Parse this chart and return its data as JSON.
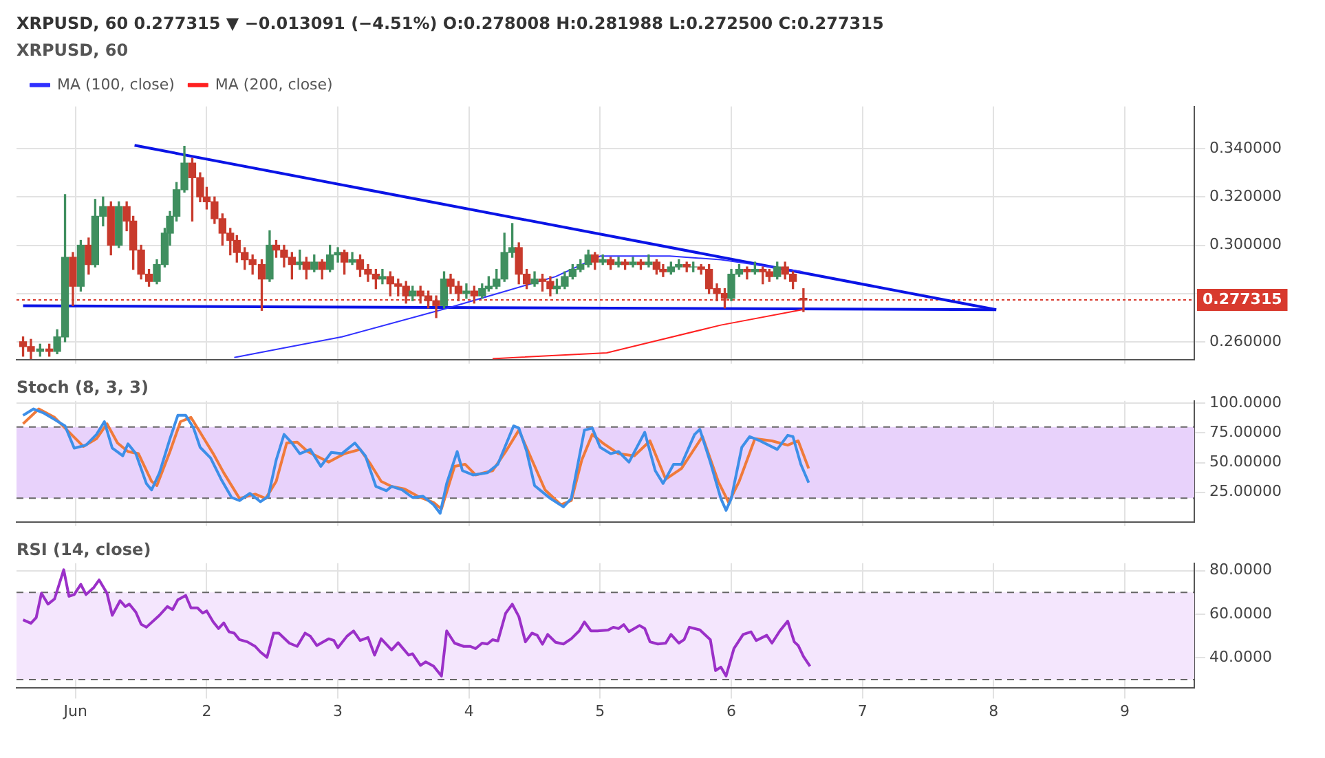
{
  "chart_data": [
    {
      "type": "candlestick",
      "title": "XRPUSD, 60",
      "subtitle": "XRPUSD, 60  0.277315 ▼ −0.013091 (−4.51%) O:0.278008 H:0.281988 L:0.272500 C:0.277315",
      "x": [
        0.6,
        0.66,
        0.73,
        0.8,
        0.86,
        0.92,
        0.98,
        1.04,
        1.1,
        1.15,
        1.21,
        1.27,
        1.33,
        1.39,
        1.44,
        1.5,
        1.56,
        1.62,
        1.68,
        1.72,
        1.77,
        1.83,
        1.89,
        1.95,
        2.0,
        2.06,
        2.12,
        2.18,
        2.23,
        2.29,
        2.35,
        2.42,
        2.48,
        2.53,
        2.59,
        2.65,
        2.71,
        2.76,
        2.82,
        2.88,
        2.94,
        3.0,
        3.05,
        3.11,
        3.17,
        3.23,
        3.29,
        3.34,
        3.4,
        3.46,
        3.52,
        3.57,
        3.63,
        3.69,
        3.75,
        3.81,
        3.86,
        3.92,
        3.98,
        4.04,
        4.1,
        4.15,
        4.21,
        4.27,
        4.33,
        4.38,
        4.44,
        4.5,
        4.56,
        4.62,
        4.67,
        4.73,
        4.79,
        4.85,
        4.91,
        4.96,
        5.02,
        5.08,
        5.14,
        5.19,
        5.25,
        5.31,
        5.37,
        5.43,
        5.48,
        5.54,
        5.6,
        5.66,
        5.71,
        5.77,
        5.83,
        5.89,
        5.95,
        6.0,
        6.06,
        6.12,
        6.18,
        6.24,
        6.29,
        6.35,
        6.41,
        6.47,
        6.55
      ],
      "ohlc": [
        [
          0.26,
          0.262,
          0.254,
          0.258
        ],
        [
          0.258,
          0.261,
          0.253,
          0.256
        ],
        [
          0.256,
          0.259,
          0.254,
          0.257
        ],
        [
          0.257,
          0.259,
          0.254,
          0.256
        ],
        [
          0.256,
          0.265,
          0.255,
          0.262
        ],
        [
          0.262,
          0.321,
          0.26,
          0.295
        ],
        [
          0.295,
          0.297,
          0.275,
          0.283
        ],
        [
          0.283,
          0.302,
          0.281,
          0.3
        ],
        [
          0.3,
          0.303,
          0.288,
          0.292
        ],
        [
          0.292,
          0.319,
          0.291,
          0.312
        ],
        [
          0.312,
          0.32,
          0.308,
          0.316
        ],
        [
          0.316,
          0.318,
          0.296,
          0.3
        ],
        [
          0.3,
          0.318,
          0.299,
          0.316
        ],
        [
          0.316,
          0.318,
          0.306,
          0.31
        ],
        [
          0.31,
          0.312,
          0.29,
          0.298
        ],
        [
          0.298,
          0.3,
          0.286,
          0.288
        ],
        [
          0.288,
          0.29,
          0.283,
          0.285
        ],
        [
          0.285,
          0.294,
          0.284,
          0.292
        ],
        [
          0.292,
          0.307,
          0.291,
          0.305
        ],
        [
          0.305,
          0.314,
          0.3,
          0.312
        ],
        [
          0.312,
          0.326,
          0.31,
          0.323
        ],
        [
          0.323,
          0.341,
          0.322,
          0.334
        ],
        [
          0.334,
          0.336,
          0.31,
          0.328
        ],
        [
          0.328,
          0.33,
          0.318,
          0.32
        ],
        [
          0.32,
          0.324,
          0.315,
          0.318
        ],
        [
          0.318,
          0.32,
          0.309,
          0.311
        ],
        [
          0.311,
          0.313,
          0.3,
          0.305
        ],
        [
          0.305,
          0.307,
          0.296,
          0.302
        ],
        [
          0.302,
          0.304,
          0.293,
          0.297
        ],
        [
          0.297,
          0.299,
          0.29,
          0.294
        ],
        [
          0.294,
          0.296,
          0.288,
          0.292
        ],
        [
          0.292,
          0.294,
          0.273,
          0.286
        ],
        [
          0.286,
          0.306,
          0.285,
          0.3
        ],
        [
          0.3,
          0.302,
          0.295,
          0.298
        ],
        [
          0.298,
          0.3,
          0.291,
          0.295
        ],
        [
          0.295,
          0.297,
          0.286,
          0.292
        ],
        [
          0.292,
          0.298,
          0.29,
          0.293
        ],
        [
          0.293,
          0.295,
          0.286,
          0.29
        ],
        [
          0.29,
          0.296,
          0.289,
          0.293
        ],
        [
          0.293,
          0.294,
          0.286,
          0.29
        ],
        [
          0.29,
          0.3,
          0.289,
          0.296
        ],
        [
          0.296,
          0.299,
          0.293,
          0.297
        ],
        [
          0.297,
          0.298,
          0.288,
          0.293
        ],
        [
          0.293,
          0.297,
          0.292,
          0.294
        ],
        [
          0.294,
          0.296,
          0.287,
          0.29
        ],
        [
          0.29,
          0.292,
          0.285,
          0.288
        ],
        [
          0.288,
          0.29,
          0.282,
          0.286
        ],
        [
          0.286,
          0.29,
          0.284,
          0.287
        ],
        [
          0.287,
          0.289,
          0.279,
          0.284
        ],
        [
          0.284,
          0.286,
          0.279,
          0.283
        ],
        [
          0.283,
          0.285,
          0.276,
          0.279
        ],
        [
          0.279,
          0.283,
          0.277,
          0.281
        ],
        [
          0.281,
          0.283,
          0.276,
          0.279
        ],
        [
          0.279,
          0.281,
          0.274,
          0.277
        ],
        [
          0.277,
          0.279,
          0.27,
          0.275
        ],
        [
          0.275,
          0.289,
          0.274,
          0.286
        ],
        [
          0.286,
          0.288,
          0.28,
          0.283
        ],
        [
          0.283,
          0.285,
          0.277,
          0.28
        ],
        [
          0.28,
          0.284,
          0.278,
          0.281
        ],
        [
          0.281,
          0.283,
          0.276,
          0.279
        ],
        [
          0.279,
          0.284,
          0.278,
          0.282
        ],
        [
          0.282,
          0.287,
          0.281,
          0.283
        ],
        [
          0.283,
          0.29,
          0.282,
          0.286
        ],
        [
          0.286,
          0.305,
          0.285,
          0.297
        ],
        [
          0.297,
          0.309,
          0.295,
          0.299
        ],
        [
          0.299,
          0.301,
          0.284,
          0.288
        ],
        [
          0.288,
          0.29,
          0.282,
          0.284
        ],
        [
          0.284,
          0.289,
          0.283,
          0.286
        ],
        [
          0.286,
          0.288,
          0.281,
          0.285
        ],
        [
          0.285,
          0.287,
          0.279,
          0.282
        ],
        [
          0.282,
          0.286,
          0.28,
          0.283
        ],
        [
          0.283,
          0.289,
          0.282,
          0.287
        ],
        [
          0.287,
          0.292,
          0.286,
          0.29
        ],
        [
          0.29,
          0.294,
          0.289,
          0.292
        ],
        [
          0.292,
          0.298,
          0.291,
          0.296
        ],
        [
          0.296,
          0.297,
          0.29,
          0.293
        ],
        [
          0.293,
          0.296,
          0.292,
          0.294
        ],
        [
          0.294,
          0.295,
          0.29,
          0.292
        ],
        [
          0.292,
          0.295,
          0.291,
          0.293
        ],
        [
          0.293,
          0.294,
          0.29,
          0.292
        ],
        [
          0.292,
          0.295,
          0.291,
          0.293
        ],
        [
          0.293,
          0.294,
          0.29,
          0.292
        ],
        [
          0.292,
          0.296,
          0.291,
          0.293
        ],
        [
          0.293,
          0.294,
          0.288,
          0.29
        ],
        [
          0.29,
          0.292,
          0.287,
          0.289
        ],
        [
          0.289,
          0.293,
          0.288,
          0.291
        ],
        [
          0.291,
          0.294,
          0.29,
          0.292
        ],
        [
          0.292,
          0.293,
          0.289,
          0.291
        ],
        [
          0.291,
          0.293,
          0.289,
          0.291
        ],
        [
          0.291,
          0.292,
          0.288,
          0.29
        ],
        [
          0.29,
          0.292,
          0.28,
          0.282
        ],
        [
          0.282,
          0.284,
          0.277,
          0.28
        ],
        [
          0.28,
          0.282,
          0.274,
          0.278
        ],
        [
          0.278,
          0.29,
          0.277,
          0.288
        ],
        [
          0.288,
          0.292,
          0.287,
          0.29
        ],
        [
          0.29,
          0.291,
          0.286,
          0.289
        ],
        [
          0.289,
          0.293,
          0.288,
          0.29
        ],
        [
          0.29,
          0.291,
          0.284,
          0.289
        ],
        [
          0.289,
          0.29,
          0.285,
          0.287
        ],
        [
          0.287,
          0.293,
          0.286,
          0.291
        ],
        [
          0.291,
          0.293,
          0.286,
          0.288
        ],
        [
          0.288,
          0.289,
          0.282,
          0.285
        ],
        [
          0.278008,
          0.281988,
          0.2725,
          0.277315
        ]
      ],
      "series": [
        {
          "name": "MA (100, close)",
          "type": "line",
          "color": "#3030ff",
          "x": [
            2.21,
            3.03,
            3.84,
            4.28,
            4.66,
            5.0,
            5.53,
            5.92,
            6.3,
            6.54
          ],
          "values": [
            0.2535,
            0.262,
            0.274,
            0.281,
            0.287,
            0.2955,
            0.2955,
            0.294,
            0.291,
            0.289
          ]
        },
        {
          "name": "MA (200, close)",
          "type": "line",
          "color": "#ff2020",
          "x": [
            4.18,
            5.05,
            5.92,
            6.54
          ],
          "values": [
            0.253,
            0.2554,
            0.2669,
            0.2733
          ]
        },
        {
          "type": "line",
          "color": "#0a14e6",
          "x": [
            1.45,
            8.02
          ],
          "values": [
            0.3414,
            0.2733
          ]
        },
        {
          "type": "line",
          "color": "#0a14e6",
          "x": [
            0.6,
            8.02
          ],
          "values": [
            0.2749,
            0.2733
          ]
        }
      ],
      "ref_lines": [
        {
          "axis": "y",
          "value": 0.277315,
          "label": "0.277315",
          "color": "#d83a2e",
          "line_style": "dashed"
        }
      ],
      "xlim": [
        0.55,
        9.53
      ],
      "ylim": [
        0.2526,
        0.3575
      ],
      "xticks": [
        1,
        2,
        3,
        4,
        5,
        6,
        7,
        8,
        9
      ],
      "yticks": [
        {
          "value": 0.26,
          "label": "0.260000"
        },
        {
          "value": 0.28,
          "label": null
        },
        {
          "value": 0.3,
          "label": "0.300000"
        },
        {
          "value": 0.32,
          "label": "0.320000"
        },
        {
          "value": 0.34,
          "label": "0.340000"
        }
      ],
      "tick_labels": "y",
      "grid": true,
      "legend": "top left"
    },
    {
      "type": "line",
      "title": "Stoch (8, 3, 3)",
      "series": [
        {
          "color": "#3d8fe8",
          "x": [
            0.6,
            0.68,
            0.76,
            0.84,
            0.92,
            0.99,
            1.08,
            1.16,
            1.22,
            1.28,
            1.36,
            1.4,
            1.46,
            1.54,
            1.58,
            1.64,
            1.72,
            1.78,
            1.84,
            1.9,
            1.95,
            2.03,
            2.11,
            2.19,
            2.25,
            2.33,
            2.41,
            2.47,
            2.53,
            2.59,
            2.65,
            2.71,
            2.79,
            2.87,
            2.95,
            3.03,
            3.13,
            3.21,
            3.29,
            3.37,
            3.41,
            3.49,
            3.57,
            3.65,
            3.73,
            3.78,
            3.83,
            3.91,
            3.95,
            4.03,
            4.14,
            4.22,
            4.34,
            4.38,
            4.44,
            4.5,
            4.62,
            4.72,
            4.78,
            4.88,
            4.94,
            5.0,
            5.08,
            5.14,
            5.22,
            5.34,
            5.42,
            5.48,
            5.56,
            5.62,
            5.72,
            5.76,
            5.84,
            5.92,
            5.96,
            6.0,
            6.08,
            6.14,
            6.22,
            6.35,
            6.43,
            6.47,
            6.53,
            6.59
          ],
          "values": [
            89.8,
            95.2,
            91.6,
            86.3,
            80.9,
            62.2,
            64.7,
            73.7,
            84.5,
            62.2,
            55.7,
            65.8,
            57.5,
            32.4,
            27.0,
            41.4,
            70.1,
            89.8,
            89.8,
            79.1,
            62.9,
            53.9,
            36.0,
            20.6,
            18.0,
            24.1,
            17.0,
            21.6,
            52.2,
            73.7,
            66.5,
            57.5,
            61.1,
            46.8,
            58.6,
            57.5,
            66.5,
            55.7,
            29.9,
            26.3,
            29.9,
            27.0,
            20.6,
            21.6,
            14.5,
            7.3,
            32.4,
            59.3,
            43.2,
            39.6,
            41.4,
            48.6,
            80.9,
            79.1,
            59.3,
            30.6,
            19.8,
            12.7,
            19.8,
            77.3,
            79.1,
            62.9,
            57.5,
            59.3,
            50.4,
            75.5,
            43.2,
            32.4,
            48.6,
            48.6,
            73.7,
            78.0,
            50.4,
            19.8,
            9.8,
            19.8,
            62.9,
            71.9,
            68.3,
            61.1,
            73.0,
            71.9,
            48.6,
            33.1
          ]
        },
        {
          "color": "#f07a3a",
          "x": [
            0.6,
            0.72,
            0.84,
            0.92,
            1.06,
            1.16,
            1.24,
            1.32,
            1.4,
            1.48,
            1.58,
            1.62,
            1.72,
            1.8,
            1.88,
            1.97,
            2.05,
            2.13,
            2.25,
            2.37,
            2.45,
            2.53,
            2.61,
            2.69,
            2.77,
            2.93,
            3.05,
            3.17,
            3.25,
            3.33,
            3.41,
            3.51,
            3.61,
            3.73,
            3.79,
            3.89,
            3.97,
            4.05,
            4.18,
            4.28,
            4.38,
            4.48,
            4.58,
            4.7,
            4.78,
            4.86,
            4.94,
            5.02,
            5.14,
            5.26,
            5.38,
            5.5,
            5.62,
            5.78,
            5.9,
            5.98,
            6.06,
            6.18,
            6.31,
            6.43,
            6.51,
            6.59
          ],
          "values": [
            82.7,
            95.2,
            88.1,
            79.1,
            63.6,
            70.1,
            82.7,
            66.5,
            59.3,
            57.5,
            34.2,
            30.6,
            59.3,
            84.5,
            88.1,
            71.9,
            57.5,
            41.4,
            19.8,
            23.4,
            19.8,
            34.2,
            66.5,
            67.2,
            59.3,
            50.4,
            57.5,
            61.1,
            48.6,
            34.2,
            29.9,
            27.7,
            21.6,
            16.3,
            10.9,
            46.8,
            48.6,
            39.6,
            43.2,
            59.3,
            77.3,
            52.2,
            27.0,
            14.5,
            18.0,
            52.2,
            73.7,
            66.5,
            57.5,
            55.7,
            68.3,
            36.0,
            45.0,
            71.9,
            34.2,
            16.3,
            34.2,
            70.1,
            68.3,
            64.7,
            68.3,
            45.0
          ]
        }
      ],
      "bands": [
        {
          "axis": "y",
          "from": 20,
          "to": 80,
          "color": "#e8d2fb"
        }
      ],
      "ref_lines": [
        {
          "axis": "y",
          "value": 20,
          "color": "#666666",
          "line_style": "dashed"
        },
        {
          "axis": "y",
          "value": 80,
          "color": "#666666",
          "line_style": "dashed"
        }
      ],
      "xlim": [
        0.55,
        9.53
      ],
      "ylim": [
        0,
        102
      ],
      "xticks": [
        1,
        2,
        3,
        4,
        5,
        6,
        7,
        8,
        9
      ],
      "yticks": [
        {
          "value": 25,
          "label": "25.00000"
        },
        {
          "value": 50,
          "label": "50.00000"
        },
        {
          "value": 75,
          "label": "75.00000"
        },
        {
          "value": 100,
          "label": "100.0000"
        }
      ],
      "tick_labels": "y",
      "grid": true
    },
    {
      "type": "line",
      "title": "RSI (14, close)",
      "series": [
        {
          "color": "#9b30c8",
          "x": [
            0.6,
            0.66,
            0.7,
            0.74,
            0.79,
            0.84,
            0.91,
            0.95,
            0.99,
            1.04,
            1.08,
            1.14,
            1.18,
            1.24,
            1.28,
            1.34,
            1.38,
            1.41,
            1.46,
            1.5,
            1.54,
            1.64,
            1.7,
            1.74,
            1.78,
            1.84,
            1.88,
            1.93,
            1.97,
            2.0,
            2.05,
            2.09,
            2.13,
            2.17,
            2.21,
            2.25,
            2.31,
            2.37,
            2.41,
            2.46,
            2.51,
            2.55,
            2.63,
            2.69,
            2.75,
            2.79,
            2.84,
            2.89,
            2.93,
            2.97,
            3.0,
            3.07,
            3.12,
            3.17,
            3.23,
            3.28,
            3.33,
            3.41,
            3.46,
            3.54,
            3.57,
            3.63,
            3.67,
            3.73,
            3.79,
            3.83,
            3.89,
            3.96,
            4.01,
            4.05,
            4.1,
            4.14,
            4.18,
            4.22,
            4.28,
            4.33,
            4.38,
            4.43,
            4.48,
            4.52,
            4.56,
            4.6,
            4.66,
            4.72,
            4.78,
            4.84,
            4.88,
            4.93,
            4.98,
            5.06,
            5.1,
            5.14,
            5.18,
            5.22,
            5.3,
            5.34,
            5.38,
            5.44,
            5.5,
            5.54,
            5.6,
            5.64,
            5.68,
            5.76,
            5.84,
            5.88,
            5.92,
            5.96,
            6.02,
            6.09,
            6.15,
            6.19,
            6.27,
            6.31,
            6.37,
            6.43,
            6.48,
            6.51,
            6.55,
            6.6
          ],
          "values": [
            57.4,
            55.8,
            58.4,
            69.6,
            64.6,
            67.0,
            80.4,
            68.2,
            69.0,
            73.7,
            69.0,
            72.3,
            75.7,
            69.6,
            59.5,
            66.2,
            63.5,
            64.6,
            60.9,
            55.4,
            54.0,
            59.5,
            63.5,
            62.1,
            66.6,
            68.6,
            62.9,
            62.9,
            60.5,
            61.5,
            56.4,
            53.4,
            56.0,
            51.9,
            51.3,
            48.3,
            47.3,
            45.2,
            42.6,
            40.2,
            51.3,
            51.3,
            46.7,
            45.2,
            51.3,
            49.9,
            45.6,
            47.3,
            48.7,
            47.9,
            44.6,
            49.9,
            52.3,
            47.9,
            49.3,
            41.2,
            48.7,
            43.6,
            46.9,
            41.2,
            41.8,
            36.5,
            38.1,
            36.1,
            31.6,
            52.3,
            46.7,
            45.2,
            45.2,
            44.2,
            46.7,
            46.3,
            48.3,
            47.7,
            60.5,
            64.6,
            58.9,
            47.3,
            51.3,
            50.3,
            46.2,
            50.7,
            47.1,
            46.3,
            48.7,
            52.3,
            56.4,
            52.3,
            52.3,
            52.7,
            54.0,
            53.4,
            55.2,
            52.0,
            54.8,
            53.4,
            47.3,
            46.3,
            46.7,
            50.7,
            46.7,
            48.3,
            54.0,
            52.8,
            48.3,
            34.1,
            35.7,
            31.6,
            44.2,
            50.7,
            51.9,
            47.9,
            50.3,
            46.7,
            52.3,
            56.8,
            47.3,
            45.6,
            40.6,
            36.1
          ]
        }
      ],
      "bands": [
        {
          "axis": "y",
          "from": 30,
          "to": 70,
          "color": "#f4e6fd"
        }
      ],
      "ref_lines": [
        {
          "axis": "y",
          "value": 30,
          "color": "#666666",
          "line_style": "dashed"
        },
        {
          "axis": "y",
          "value": 70,
          "color": "#666666",
          "line_style": "dashed"
        }
      ],
      "xlim": [
        0.55,
        9.53
      ],
      "ylim": [
        26.3,
        83.4
      ],
      "xticks": [
        {
          "value": 1,
          "label": "Jun"
        },
        2,
        3,
        4,
        5,
        6,
        7,
        8,
        9
      ],
      "yticks": [
        {
          "value": 40,
          "label": "40.0000"
        },
        {
          "value": 60,
          "label": "60.0000"
        },
        {
          "value": 80,
          "label": "80.0000"
        }
      ],
      "grid": true
    }
  ]
}
